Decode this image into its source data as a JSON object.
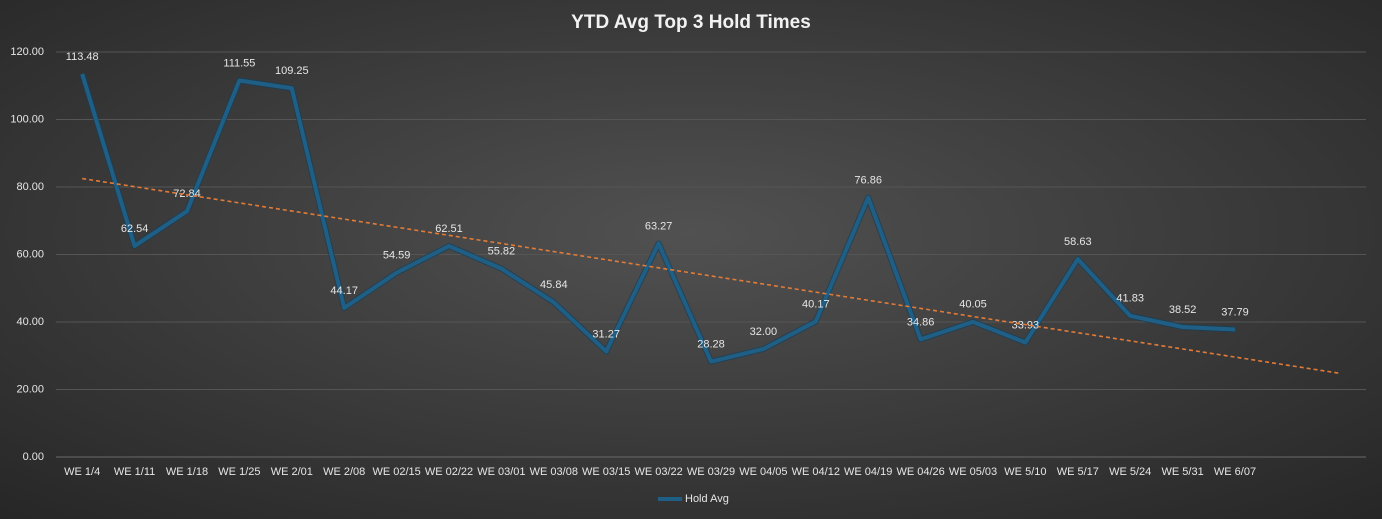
{
  "chart_data": {
    "type": "line",
    "title": "YTD Avg Top 3 Hold Times",
    "categories": [
      "WE 1/4",
      "WE 1/11",
      "WE 1/18",
      "WE 1/25",
      "WE 2/01",
      "WE 2/08",
      "WE 02/15",
      "WE 02/22",
      "WE 03/01",
      "WE 03/08",
      "WE 03/15",
      "WE 03/22",
      "WE 03/29",
      "WE 04/05",
      "WE 04/12",
      "WE 04/19",
      "WE 04/26",
      "WE 05/03",
      "WE 5/10",
      "WE 5/17",
      "WE 5/24",
      "WE 5/31",
      "WE 6/07",
      null,
      null
    ],
    "series": [
      {
        "name": "Hold Avg",
        "color": "#1f5f86",
        "values": [
          113.48,
          62.54,
          72.84,
          111.55,
          109.25,
          44.17,
          54.59,
          62.51,
          55.82,
          45.84,
          31.27,
          63.27,
          28.28,
          32.0,
          40.17,
          76.86,
          34.86,
          40.05,
          33.93,
          58.63,
          41.83,
          38.52,
          37.79,
          null,
          null
        ],
        "value_labels": [
          "113.48",
          "62.54",
          "72.84",
          "111.55",
          "109.25",
          "44.17",
          "54.59",
          "62.51",
          "55.82",
          "45.84",
          "31.27",
          "63.27",
          "28.28",
          "32.00",
          "40.17",
          "76.86",
          "34.86",
          "40.05",
          "33.93",
          "58.63",
          "41.83",
          "38.52",
          "37.79",
          null,
          null
        ]
      }
    ],
    "trendline": {
      "values": [
        82.5,
        24.8
      ],
      "color": "#e07b39",
      "dashed": true
    },
    "ylim": [
      0,
      120
    ],
    "yticks": [
      {
        "value": 0,
        "label": "0.00"
      },
      {
        "value": 20,
        "label": "20.00"
      },
      {
        "value": 40,
        "label": "40.00"
      },
      {
        "value": 60,
        "label": "60.00"
      },
      {
        "value": 80,
        "label": "80.00"
      },
      {
        "value": 100,
        "label": "100.00"
      },
      {
        "value": 120,
        "label": "120.00"
      }
    ],
    "grid": true,
    "legend": "bottom"
  }
}
